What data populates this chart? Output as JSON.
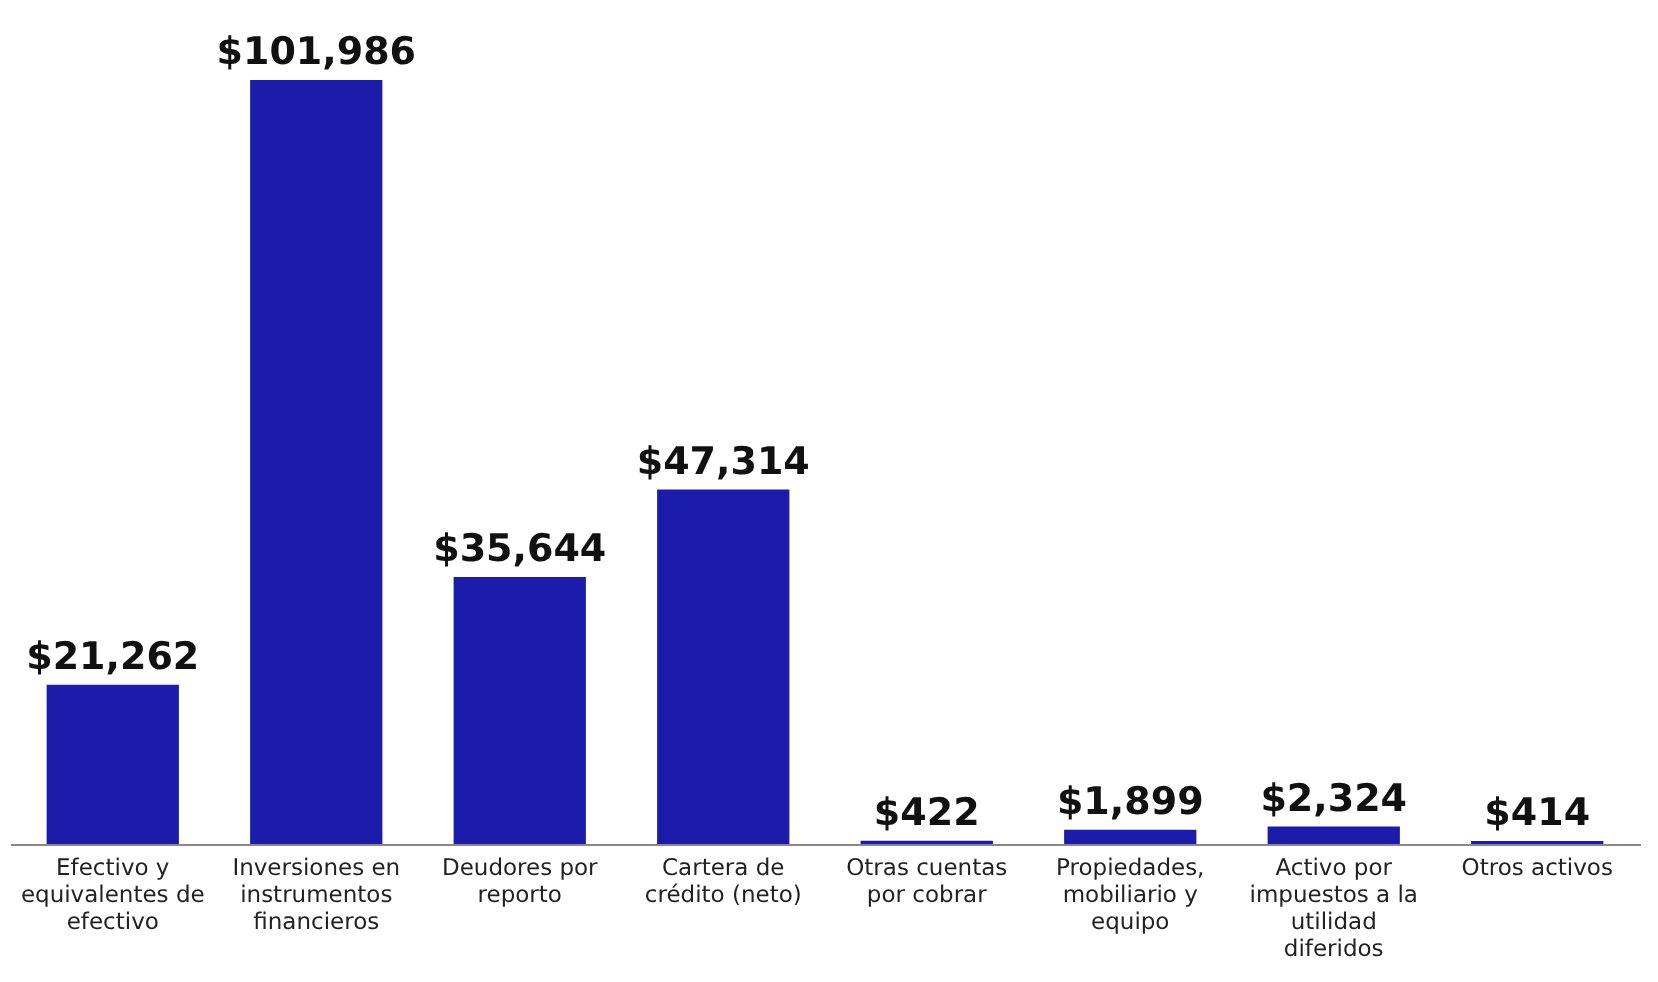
{
  "chart_data": {
    "type": "bar",
    "categories": [
      "Efectivo y equivalentes de efectivo",
      "Inversiones en instrumentos financieros",
      "Deudores por reporto",
      "Cartera de crédito (neto)",
      "Otras cuentas por cobrar",
      "Propiedades, mobiliario y equipo",
      "Activo por impuestos a la utilidad diferidos",
      "Otros activos"
    ],
    "values": [
      21262,
      101986,
      35644,
      47314,
      422,
      1899,
      2324,
      414
    ],
    "value_labels": [
      "$21,262",
      "$101,986",
      "$35,644",
      "$47,314",
      "$422",
      "$1,899",
      "$2,324",
      "$414"
    ],
    "color": "#1c1cab"
  }
}
